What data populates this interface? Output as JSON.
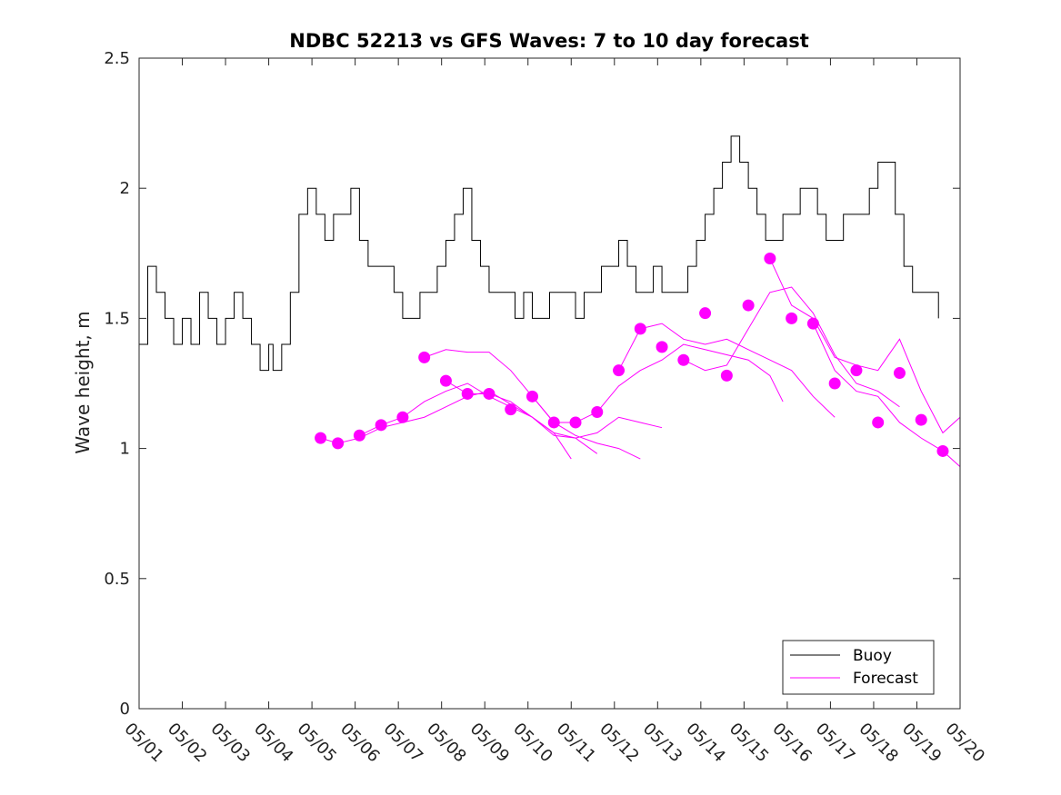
{
  "chart_data": {
    "type": "line",
    "title": "NDBC 52213 vs GFS Waves: 7 to 10 day forecast",
    "xlabel": "",
    "ylabel": "Wave height, m",
    "xlim": [
      "05/01",
      "05/20"
    ],
    "ylim": [
      0,
      2.5
    ],
    "yticks": [
      "0",
      "0.5",
      "1",
      "1.5",
      "2",
      "2.5"
    ],
    "xticks": [
      "05/01",
      "05/02",
      "05/03",
      "05/04",
      "05/05",
      "05/06",
      "05/07",
      "05/08",
      "05/09",
      "05/10",
      "05/11",
      "05/12",
      "05/13",
      "05/14",
      "05/15",
      "05/16",
      "05/17",
      "05/18",
      "05/19",
      "05/20"
    ],
    "grid": false,
    "legend": {
      "position": "bottom-right",
      "entries": [
        "Buoy",
        "Forecast"
      ]
    },
    "colors": {
      "buoy": "#000000",
      "forecast": "#ff00ff"
    },
    "series": [
      {
        "name": "Buoy",
        "x_unit": "day of May",
        "points": [
          [
            1.0,
            1.4
          ],
          [
            1.2,
            1.7
          ],
          [
            1.4,
            1.6
          ],
          [
            1.6,
            1.5
          ],
          [
            1.8,
            1.4
          ],
          [
            2.0,
            1.5
          ],
          [
            2.2,
            1.4
          ],
          [
            2.4,
            1.6
          ],
          [
            2.6,
            1.5
          ],
          [
            2.8,
            1.4
          ],
          [
            3.0,
            1.5
          ],
          [
            3.2,
            1.6
          ],
          [
            3.4,
            1.5
          ],
          [
            3.6,
            1.4
          ],
          [
            3.8,
            1.3
          ],
          [
            4.0,
            1.4
          ],
          [
            4.1,
            1.3
          ],
          [
            4.3,
            1.4
          ],
          [
            4.5,
            1.6
          ],
          [
            4.7,
            1.9
          ],
          [
            4.9,
            2.0
          ],
          [
            5.1,
            1.9
          ],
          [
            5.3,
            1.8
          ],
          [
            5.5,
            1.9
          ],
          [
            5.7,
            1.9
          ],
          [
            5.9,
            2.0
          ],
          [
            6.1,
            1.8
          ],
          [
            6.3,
            1.7
          ],
          [
            6.5,
            1.7
          ],
          [
            6.7,
            1.7
          ],
          [
            6.9,
            1.6
          ],
          [
            7.1,
            1.5
          ],
          [
            7.3,
            1.5
          ],
          [
            7.5,
            1.6
          ],
          [
            7.7,
            1.6
          ],
          [
            7.9,
            1.7
          ],
          [
            8.1,
            1.8
          ],
          [
            8.3,
            1.9
          ],
          [
            8.5,
            2.0
          ],
          [
            8.7,
            1.8
          ],
          [
            8.9,
            1.7
          ],
          [
            9.1,
            1.6
          ],
          [
            9.3,
            1.6
          ],
          [
            9.5,
            1.6
          ],
          [
            9.7,
            1.5
          ],
          [
            9.9,
            1.6
          ],
          [
            10.1,
            1.5
          ],
          [
            10.3,
            1.5
          ],
          [
            10.5,
            1.6
          ],
          [
            10.7,
            1.6
          ],
          [
            10.9,
            1.6
          ],
          [
            11.1,
            1.5
          ],
          [
            11.3,
            1.6
          ],
          [
            11.5,
            1.6
          ],
          [
            11.7,
            1.7
          ],
          [
            11.9,
            1.7
          ],
          [
            12.1,
            1.8
          ],
          [
            12.3,
            1.7
          ],
          [
            12.5,
            1.6
          ],
          [
            12.7,
            1.6
          ],
          [
            12.9,
            1.7
          ],
          [
            13.1,
            1.6
          ],
          [
            13.3,
            1.6
          ],
          [
            13.5,
            1.6
          ],
          [
            13.7,
            1.7
          ],
          [
            13.9,
            1.8
          ],
          [
            14.1,
            1.9
          ],
          [
            14.3,
            2.0
          ],
          [
            14.5,
            2.1
          ],
          [
            14.7,
            2.2
          ],
          [
            14.9,
            2.1
          ],
          [
            15.1,
            2.0
          ],
          [
            15.3,
            1.9
          ],
          [
            15.5,
            1.8
          ],
          [
            15.7,
            1.8
          ],
          [
            15.9,
            1.9
          ],
          [
            16.1,
            1.9
          ],
          [
            16.3,
            2.0
          ],
          [
            16.5,
            2.0
          ],
          [
            16.7,
            1.9
          ],
          [
            16.9,
            1.8
          ],
          [
            17.1,
            1.8
          ],
          [
            17.3,
            1.9
          ],
          [
            17.5,
            1.9
          ],
          [
            17.7,
            1.9
          ],
          [
            17.9,
            2.0
          ],
          [
            18.1,
            2.1
          ],
          [
            18.3,
            2.1
          ],
          [
            18.5,
            1.9
          ],
          [
            18.7,
            1.7
          ],
          [
            18.9,
            1.6
          ],
          [
            19.1,
            1.6
          ],
          [
            19.3,
            1.6
          ],
          [
            19.5,
            1.5
          ]
        ]
      },
      {
        "name": "Forecast",
        "points": [
          [
            5.2,
            1.04
          ],
          [
            5.6,
            1.02
          ],
          [
            6.1,
            1.05
          ],
          [
            6.6,
            1.09
          ],
          [
            7.1,
            1.12
          ],
          [
            7.6,
            1.35
          ],
          [
            8.1,
            1.26
          ],
          [
            8.6,
            1.21
          ],
          [
            9.1,
            1.21
          ],
          [
            9.6,
            1.15
          ],
          [
            10.1,
            1.2
          ],
          [
            10.6,
            1.1
          ],
          [
            11.1,
            1.1
          ],
          [
            11.6,
            1.14
          ],
          [
            12.1,
            1.3
          ],
          [
            12.6,
            1.46
          ],
          [
            13.1,
            1.39
          ],
          [
            13.6,
            1.34
          ],
          [
            14.1,
            1.52
          ],
          [
            14.6,
            1.28
          ],
          [
            15.1,
            1.55
          ],
          [
            15.6,
            1.73
          ],
          [
            16.1,
            1.5
          ],
          [
            16.6,
            1.48
          ],
          [
            17.1,
            1.25
          ],
          [
            17.6,
            1.3
          ],
          [
            18.1,
            1.1
          ],
          [
            18.6,
            1.29
          ],
          [
            19.1,
            1.11
          ],
          [
            19.6,
            0.99
          ]
        ],
        "traces": [
          [
            [
              5.2,
              1.04
            ],
            [
              5.6,
              1.02
            ],
            [
              6.1,
              1.04
            ],
            [
              6.6,
              1.08
            ],
            [
              7.1,
              1.1
            ],
            [
              7.6,
              1.12
            ],
            [
              8.1,
              1.16
            ],
            [
              8.6,
              1.2
            ],
            [
              9.1,
              1.22
            ],
            [
              9.6,
              1.17
            ],
            [
              10.1,
              1.12
            ],
            [
              10.6,
              1.06
            ],
            [
              11.0,
              0.96
            ]
          ],
          [
            [
              6.1,
              1.05
            ],
            [
              6.6,
              1.09
            ],
            [
              7.1,
              1.12
            ],
            [
              7.6,
              1.18
            ],
            [
              8.1,
              1.22
            ],
            [
              8.6,
              1.25
            ],
            [
              9.1,
              1.2
            ],
            [
              9.6,
              1.16
            ],
            [
              10.1,
              1.12
            ],
            [
              10.6,
              1.06
            ],
            [
              11.1,
              1.04
            ],
            [
              11.6,
              0.98
            ]
          ],
          [
            [
              7.6,
              1.35
            ],
            [
              8.1,
              1.38
            ],
            [
              8.6,
              1.37
            ],
            [
              9.1,
              1.37
            ],
            [
              9.6,
              1.3
            ],
            [
              10.1,
              1.2
            ],
            [
              10.6,
              1.1
            ],
            [
              11.1,
              1.05
            ],
            [
              11.6,
              1.02
            ],
            [
              12.1,
              1.0
            ],
            [
              12.6,
              0.96
            ]
          ],
          [
            [
              8.1,
              1.26
            ],
            [
              8.6,
              1.21
            ],
            [
              9.1,
              1.21
            ],
            [
              9.6,
              1.18
            ],
            [
              10.1,
              1.12
            ],
            [
              10.6,
              1.05
            ],
            [
              11.1,
              1.04
            ],
            [
              11.6,
              1.06
            ],
            [
              12.1,
              1.12
            ],
            [
              12.6,
              1.1
            ],
            [
              13.1,
              1.08
            ]
          ],
          [
            [
              10.1,
              1.2
            ],
            [
              10.6,
              1.1
            ],
            [
              11.1,
              1.1
            ],
            [
              11.6,
              1.14
            ],
            [
              12.1,
              1.24
            ],
            [
              12.6,
              1.3
            ],
            [
              13.1,
              1.34
            ],
            [
              13.6,
              1.4
            ],
            [
              14.1,
              1.38
            ],
            [
              14.6,
              1.36
            ],
            [
              15.1,
              1.34
            ],
            [
              15.6,
              1.28
            ],
            [
              15.9,
              1.18
            ]
          ],
          [
            [
              12.1,
              1.3
            ],
            [
              12.6,
              1.46
            ],
            [
              13.1,
              1.48
            ],
            [
              13.6,
              1.42
            ],
            [
              14.1,
              1.4
            ],
            [
              14.6,
              1.42
            ],
            [
              15.1,
              1.38
            ],
            [
              15.6,
              1.34
            ],
            [
              16.1,
              1.3
            ],
            [
              16.6,
              1.2
            ],
            [
              17.1,
              1.12
            ]
          ],
          [
            [
              13.6,
              1.34
            ],
            [
              14.1,
              1.3
            ],
            [
              14.6,
              1.32
            ],
            [
              15.1,
              1.46
            ],
            [
              15.6,
              1.6
            ],
            [
              16.1,
              1.62
            ],
            [
              16.6,
              1.52
            ],
            [
              17.1,
              1.36
            ],
            [
              17.6,
              1.25
            ],
            [
              18.1,
              1.22
            ],
            [
              18.6,
              1.16
            ]
          ],
          [
            [
              15.6,
              1.73
            ],
            [
              16.1,
              1.55
            ],
            [
              16.6,
              1.5
            ],
            [
              17.1,
              1.35
            ],
            [
              17.6,
              1.32
            ],
            [
              18.1,
              1.3
            ],
            [
              18.6,
              1.42
            ],
            [
              19.1,
              1.22
            ],
            [
              19.6,
              1.06
            ],
            [
              20.0,
              1.12
            ]
          ],
          [
            [
              16.6,
              1.48
            ],
            [
              17.1,
              1.3
            ],
            [
              17.6,
              1.22
            ],
            [
              18.1,
              1.2
            ],
            [
              18.6,
              1.1
            ],
            [
              19.1,
              1.04
            ],
            [
              19.6,
              0.99
            ],
            [
              20.0,
              0.93
            ]
          ]
        ]
      }
    ]
  }
}
